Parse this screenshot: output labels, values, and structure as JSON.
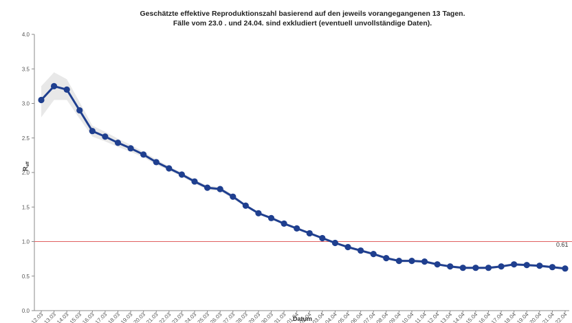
{
  "chart_data": {
    "type": "line",
    "title": "Geschätzte effektive Reproduktionszahl basierend auf den jeweils vorangegangenen 13 Tagen.",
    "subtitle": "Fälle vom 23.0 . und 24.04. sind exkludiert (eventuell unvollständige Daten).",
    "xlabel": "Datum",
    "ylabel": "R",
    "ylabel_sub": "eff",
    "ylim": [
      0,
      4
    ],
    "yticks": [
      "0.0",
      "0.5",
      "1.0",
      "1.5",
      "2.0",
      "2.5",
      "3.0",
      "3.5",
      "4.0"
    ],
    "reference_line": 1.0,
    "reference_color": "#e06060",
    "line_color": "#1f3f8f",
    "band_color": "#cccccc",
    "end_label": "0.61",
    "x": [
      "12.03",
      "13.03",
      "14.03",
      "15.03",
      "16.03",
      "17.03",
      "18.03",
      "19.03",
      "20.03",
      "21.03",
      "22.03",
      "23.03",
      "24.03",
      "25.03",
      "26.03",
      "27.03",
      "28.03",
      "29.03",
      "30.03",
      "31.03",
      "01.04",
      "02.04",
      "03.04",
      "04.04",
      "05.04",
      "06.04",
      "07.04",
      "08.04",
      "09.04",
      "10.04",
      "11.04",
      "12.04",
      "13.04",
      "14.04",
      "15.04",
      "16.04",
      "17.04",
      "18.04",
      "19.04",
      "20.04",
      "21.04",
      "22.04"
    ],
    "series": [
      {
        "values": [
          3.05,
          3.25,
          3.2,
          2.9,
          2.6,
          2.52,
          2.43,
          2.35,
          2.26,
          2.15,
          2.06,
          1.97,
          1.87,
          1.78,
          1.76,
          1.65,
          1.52,
          1.41,
          1.34,
          1.26,
          1.19,
          1.12,
          1.05,
          0.98,
          0.92,
          0.87,
          0.82,
          0.76,
          0.72,
          0.72,
          0.71,
          0.67,
          0.64,
          0.62,
          0.62,
          0.62,
          0.64,
          0.67,
          0.66,
          0.65,
          0.63,
          0.61
        ],
        "lower": [
          2.8,
          3.05,
          3.05,
          2.78,
          2.52,
          2.45,
          2.37,
          2.3,
          2.22,
          2.11,
          2.03,
          1.94,
          1.84,
          1.75,
          1.73,
          1.62,
          1.5,
          1.39,
          1.32,
          1.24,
          1.17,
          1.1,
          1.03,
          0.96,
          0.9,
          0.85,
          0.8,
          0.74,
          0.7,
          0.7,
          0.69,
          0.65,
          0.62,
          0.6,
          0.6,
          0.6,
          0.62,
          0.65,
          0.64,
          0.63,
          0.61,
          0.59
        ],
        "upper": [
          3.25,
          3.45,
          3.35,
          3.02,
          2.68,
          2.59,
          2.49,
          2.4,
          2.3,
          2.19,
          2.09,
          2.0,
          1.9,
          1.81,
          1.79,
          1.68,
          1.54,
          1.43,
          1.36,
          1.28,
          1.21,
          1.14,
          1.07,
          1.0,
          0.94,
          0.89,
          0.84,
          0.78,
          0.74,
          0.74,
          0.73,
          0.69,
          0.66,
          0.64,
          0.64,
          0.64,
          0.66,
          0.69,
          0.68,
          0.67,
          0.65,
          0.63
        ]
      }
    ],
    "grid": false,
    "legend": "none"
  }
}
